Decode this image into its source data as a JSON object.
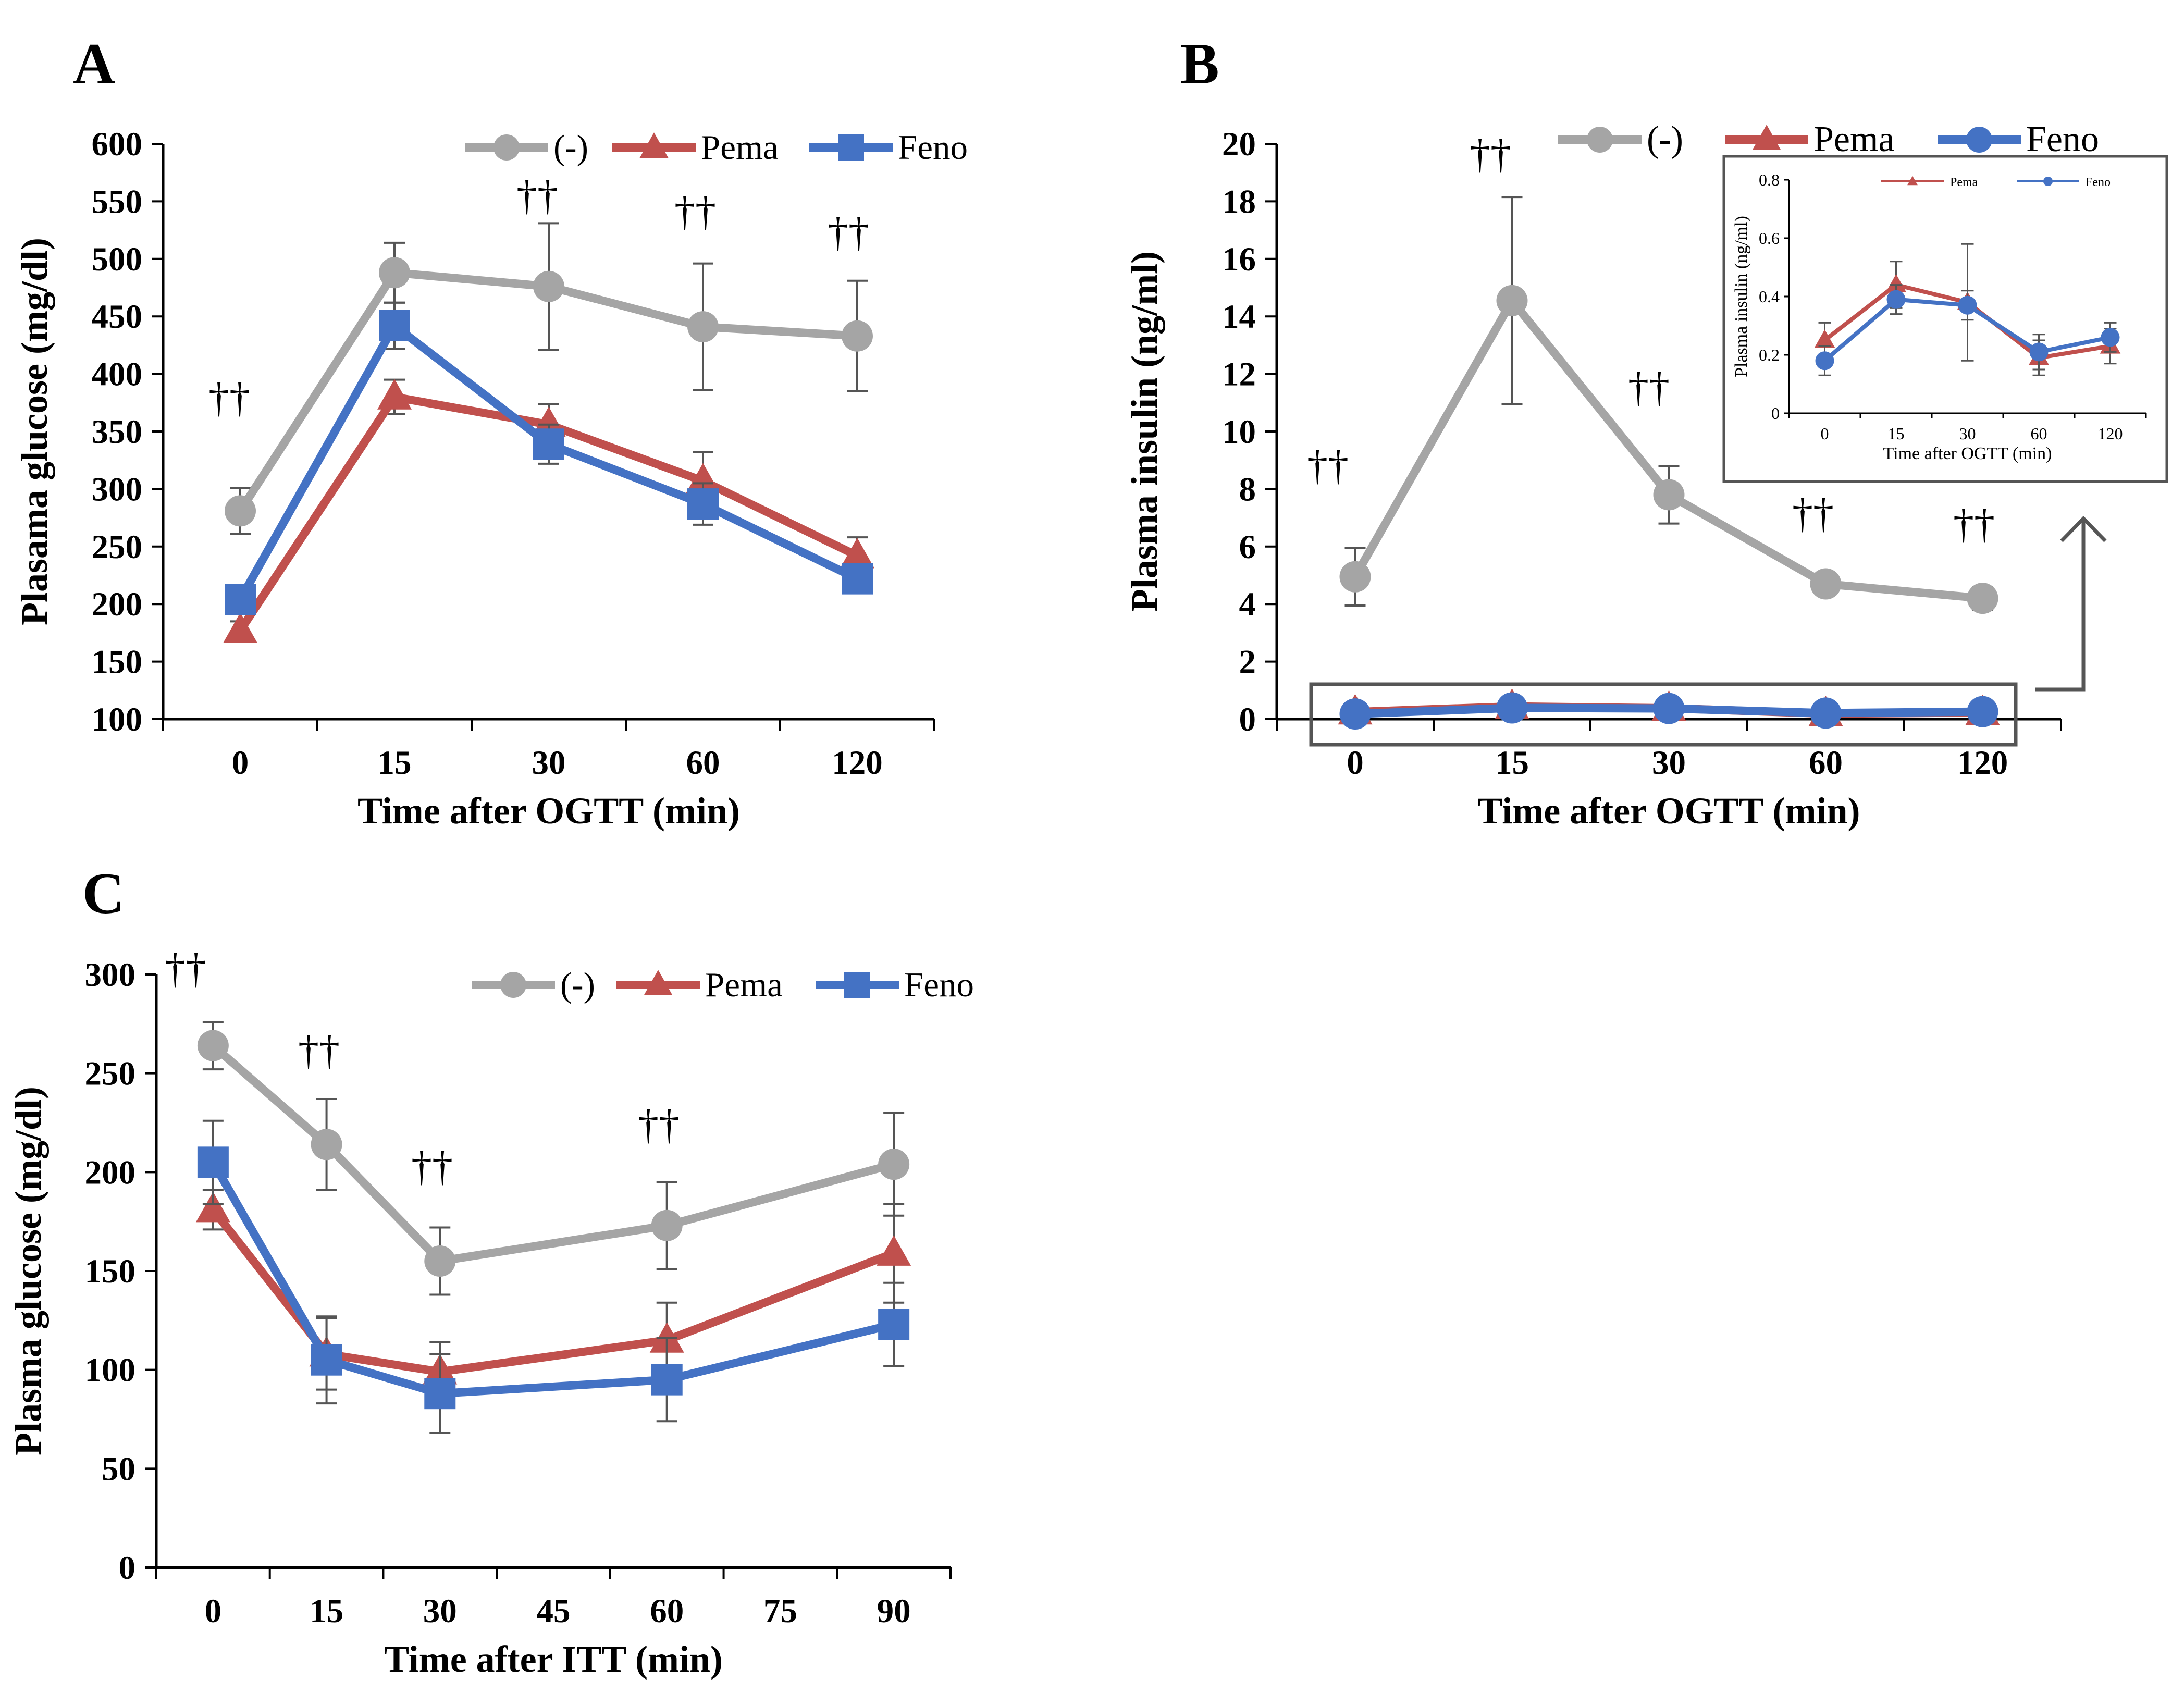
{
  "chart_data": [
    {
      "id": "A",
      "panel_label": "A",
      "type": "line",
      "xlabel": "Time after OGTT (min)",
      "ylabel": "Plasama glucose (mg/dl)",
      "categories": [
        "0",
        "15",
        "30",
        "60",
        "120"
      ],
      "ylim": [
        100,
        600
      ],
      "yticks": [
        "100",
        "150",
        "200",
        "250",
        "300",
        "350",
        "400",
        "450",
        "500",
        "550",
        "600"
      ],
      "legend_position": "top",
      "series": [
        {
          "name": "(-)",
          "color": "#A5A5A5",
          "marker": "circle",
          "values": [
            281,
            488,
            476,
            441,
            433
          ],
          "errors": [
            20,
            26,
            55,
            55,
            48
          ]
        },
        {
          "name": "Pema",
          "color": "#C0504D",
          "marker": "triangle",
          "values": [
            177,
            380,
            356,
            307,
            242
          ],
          "errors": [
            8,
            15,
            18,
            25,
            16
          ]
        },
        {
          "name": "Feno",
          "color": "#4472C4",
          "marker": "square",
          "values": [
            204,
            442,
            339,
            287,
            222
          ],
          "errors": [
            8,
            20,
            17,
            18,
            10
          ]
        }
      ],
      "annotations": [
        "††",
        "††",
        "††",
        "††"
      ]
    },
    {
      "id": "B",
      "panel_label": "B",
      "type": "line",
      "xlabel": "Time after OGTT (min)",
      "ylabel": "Plasma insulin (ng/ml)",
      "categories": [
        "0",
        "15",
        "30",
        "60",
        "120"
      ],
      "ylim": [
        0,
        20
      ],
      "yticks": [
        "0",
        "2",
        "4",
        "6",
        "8",
        "10",
        "12",
        "14",
        "16",
        "18",
        "20"
      ],
      "legend_position": "top",
      "series": [
        {
          "name": "(-)",
          "color": "#A5A5A5",
          "marker": "circle",
          "values": [
            4.95,
            14.55,
            7.8,
            4.7,
            4.2
          ],
          "errors": [
            1.0,
            3.6,
            1.0,
            0.3,
            0.4
          ]
        },
        {
          "name": "Pema",
          "color": "#C0504D",
          "marker": "triangle",
          "values": [
            0.25,
            0.44,
            0.38,
            0.19,
            0.23
          ],
          "errors": [
            0.06,
            0.08,
            0.2,
            0.06,
            0.06
          ]
        },
        {
          "name": "Feno",
          "color": "#4472C4",
          "marker": "circle",
          "values": [
            0.18,
            0.39,
            0.37,
            0.21,
            0.26
          ],
          "errors": [
            0.05,
            0.05,
            0.05,
            0.06,
            0.05
          ]
        }
      ],
      "annotations": [
        "††",
        "††",
        "††",
        "††",
        "††"
      ],
      "inset": {
        "type": "line",
        "xlabel": "Time after OGTT (min)",
        "ylabel": "Plasma insulin (ng/ml)",
        "categories": [
          "0",
          "15",
          "30",
          "60",
          "120"
        ],
        "ylim": [
          0,
          0.8
        ],
        "yticks": [
          "0",
          "0.2",
          "0.4",
          "0.6",
          "0.8"
        ],
        "series": [
          {
            "name": "Pema",
            "color": "#C0504D",
            "marker": "triangle",
            "values": [
              0.25,
              0.44,
              0.38,
              0.19,
              0.23
            ],
            "errors": [
              0.06,
              0.08,
              0.2,
              0.06,
              0.06
            ]
          },
          {
            "name": "Feno",
            "color": "#4472C4",
            "marker": "circle",
            "values": [
              0.18,
              0.39,
              0.37,
              0.21,
              0.26
            ],
            "errors": [
              0.05,
              0.05,
              0.05,
              0.06,
              0.05
            ]
          }
        ]
      }
    },
    {
      "id": "C",
      "panel_label": "C",
      "type": "line",
      "xlabel": "Time after ITT (min)",
      "ylabel": "Plasma glucose (mg/dl)",
      "x": [
        0,
        15,
        30,
        60,
        90
      ],
      "xticks": [
        "0",
        "15",
        "30",
        "45",
        "60",
        "75",
        "90"
      ],
      "xlim": [
        -7.5,
        97.5
      ],
      "ylim": [
        0,
        300
      ],
      "yticks": [
        "0",
        "50",
        "100",
        "150",
        "200",
        "250",
        "300"
      ],
      "legend_position": "top",
      "series": [
        {
          "name": "(-)",
          "color": "#A5A5A5",
          "marker": "circle",
          "values": [
            264,
            214,
            155,
            173,
            204
          ],
          "errors": [
            12,
            23,
            17,
            22,
            26
          ]
        },
        {
          "name": "Pema",
          "color": "#C0504D",
          "marker": "triangle",
          "values": [
            181,
            108,
            99,
            115,
            159
          ],
          "errors": [
            10,
            18,
            15,
            19,
            25
          ]
        },
        {
          "name": "Feno",
          "color": "#4472C4",
          "marker": "square",
          "values": [
            205,
            105,
            88,
            95,
            123
          ],
          "errors": [
            21,
            22,
            20,
            21,
            21
          ]
        }
      ],
      "annotations": [
        "††",
        "††",
        "††",
        "††"
      ]
    }
  ]
}
